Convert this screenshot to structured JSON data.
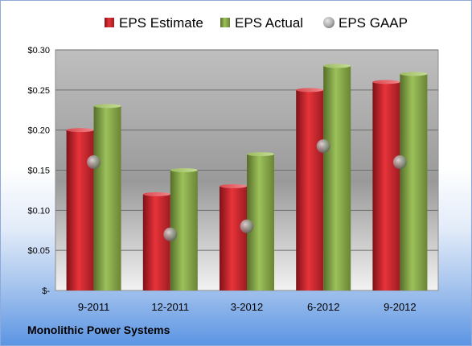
{
  "company_name": "Monolithic Power Systems",
  "chart_data": {
    "type": "bar",
    "categories": [
      "9-2011",
      "12-2011",
      "3-2012",
      "6-2012",
      "9-2012"
    ],
    "series": [
      {
        "name": "EPS Estimate",
        "type": "bar",
        "color": "#c0272d",
        "values": [
          0.2,
          0.12,
          0.13,
          0.25,
          0.26
        ]
      },
      {
        "name": "EPS Actual",
        "type": "bar",
        "color": "#77933c",
        "values": [
          0.23,
          0.15,
          0.17,
          0.28,
          0.27
        ]
      },
      {
        "name": "EPS GAAP",
        "type": "scatter",
        "color": "#a6a6a6",
        "values": [
          0.16,
          0.07,
          0.08,
          0.18,
          0.16
        ]
      }
    ],
    "ylim": [
      0,
      0.3
    ],
    "yticks": [
      0,
      0.05,
      0.1,
      0.15,
      0.2,
      0.25,
      0.3
    ],
    "ytick_labels": [
      "$-",
      "$0.05",
      "$0.10",
      "$0.15",
      "$0.20",
      "$0.25",
      "$0.30"
    ],
    "legend_position": "top",
    "grid": true
  }
}
